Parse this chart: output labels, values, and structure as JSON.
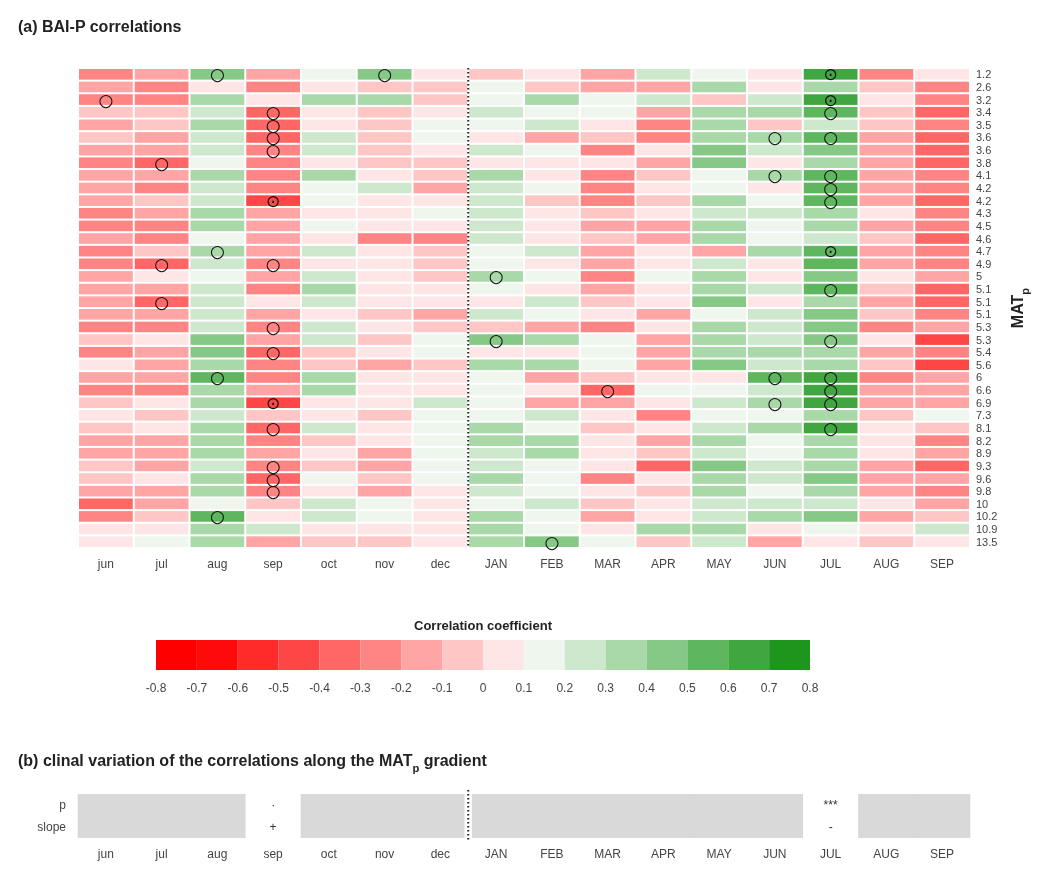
{
  "chart_data": [
    {
      "type": "heatmap",
      "title": "(a) BAI-P correlations",
      "ylabel": "MAT$_{p}$",
      "clabel": "Correlation coefficient",
      "categories": [
        "jun",
        "jul",
        "aug",
        "sep",
        "oct",
        "nov",
        "dec",
        "JAN",
        "FEB",
        "MAR",
        "APR",
        "MAY",
        "JUN",
        "JUL",
        "AUG",
        "SEP"
      ],
      "y_categories": [
        "1.2",
        "2.6",
        "3.2",
        "3.4",
        "3.5",
        "3.6",
        "3.6",
        "3.8",
        "4.1",
        "4.2",
        "4.2",
        "4.3",
        "4.5",
        "4.6",
        "4.7",
        "4.9",
        "5",
        "5.1",
        "5.1",
        "5.1",
        "5.3",
        "5.3",
        "5.4",
        "5.6",
        "6",
        "6.6",
        "6.9",
        "7.3",
        "8.1",
        "8.2",
        "8.9",
        "9.3",
        "9.6",
        "9.8",
        "10",
        "10.2",
        "10.9",
        "13.5"
      ],
      "clim": [
        -0.8,
        0.8
      ],
      "cticks": [
        -0.8,
        -0.7,
        -0.6,
        -0.5,
        -0.4,
        -0.3,
        -0.2,
        -0.1,
        0,
        0.1,
        0.2,
        0.3,
        0.4,
        0.5,
        0.6,
        0.7,
        0.8
      ],
      "cells": [
        [
          -0.25,
          -0.15,
          0.45,
          -0.15,
          0.15,
          0.45,
          0.05,
          -0.05,
          0.05,
          -0.15,
          0.25,
          0.15,
          0.05,
          0.65,
          -0.25,
          0.05
        ],
        [
          -0.15,
          -0.25,
          0.05,
          -0.25,
          0.05,
          -0.05,
          -0.05,
          0.15,
          -0.05,
          -0.15,
          -0.15,
          0.35,
          0.05,
          0.35,
          -0.05,
          -0.25
        ],
        [
          -0.25,
          -0.25,
          0.35,
          0.05,
          0.35,
          0.35,
          -0.05,
          0.15,
          0.35,
          0.15,
          0.25,
          -0.05,
          0.25,
          0.65,
          0.05,
          -0.25
        ],
        [
          -0.05,
          -0.05,
          0.25,
          -0.35,
          0.05,
          -0.05,
          0.05,
          0.25,
          0.15,
          0.15,
          -0.15,
          0.35,
          0.35,
          0.55,
          -0.05,
          -0.35
        ],
        [
          -0.15,
          -0.05,
          0.35,
          -0.35,
          0.05,
          -0.05,
          0.15,
          0.15,
          0.25,
          0.05,
          -0.25,
          0.35,
          -0.05,
          0.25,
          -0.05,
          -0.25
        ],
        [
          -0.05,
          -0.15,
          0.25,
          -0.35,
          0.25,
          -0.05,
          0.15,
          0.05,
          -0.15,
          -0.05,
          -0.25,
          0.35,
          0.35,
          0.55,
          -0.15,
          -0.35
        ],
        [
          -0.15,
          -0.15,
          0.25,
          -0.25,
          0.25,
          -0.05,
          0.05,
          0.25,
          0.15,
          -0.25,
          0.05,
          0.45,
          0.25,
          0.45,
          -0.15,
          -0.35
        ],
        [
          -0.25,
          -0.35,
          0.15,
          -0.25,
          0.05,
          -0.05,
          -0.05,
          0.05,
          0.05,
          0.05,
          -0.15,
          0.45,
          0.05,
          0.35,
          -0.15,
          -0.35
        ],
        [
          -0.15,
          -0.15,
          0.35,
          -0.25,
          0.35,
          0.05,
          -0.05,
          0.35,
          0.05,
          -0.25,
          -0.05,
          0.15,
          0.35,
          0.55,
          -0.15,
          -0.25
        ],
        [
          -0.15,
          -0.25,
          0.25,
          -0.25,
          0.15,
          0.25,
          -0.15,
          0.25,
          0.15,
          -0.25,
          0.05,
          0.15,
          0.05,
          0.55,
          -0.15,
          -0.25
        ],
        [
          -0.15,
          -0.05,
          0.25,
          -0.45,
          0.15,
          0.05,
          0.05,
          0.25,
          -0.05,
          -0.25,
          -0.05,
          0.35,
          0.15,
          0.55,
          -0.15,
          -0.35
        ],
        [
          -0.25,
          -0.15,
          0.35,
          -0.15,
          0.05,
          0.05,
          0.15,
          0.25,
          0.05,
          -0.05,
          0.05,
          0.25,
          0.25,
          0.35,
          0.05,
          -0.25
        ],
        [
          -0.25,
          -0.25,
          0.35,
          -0.15,
          0.15,
          0.05,
          0.05,
          0.25,
          0.05,
          -0.15,
          -0.15,
          0.35,
          0.15,
          0.35,
          -0.15,
          -0.25
        ],
        [
          -0.15,
          -0.25,
          0.15,
          -0.15,
          0.05,
          -0.25,
          -0.25,
          0.25,
          0.05,
          -0.05,
          -0.15,
          0.35,
          0.15,
          0.25,
          -0.05,
          -0.35
        ],
        [
          -0.25,
          -0.05,
          0.35,
          -0.15,
          0.25,
          0.05,
          -0.05,
          0.15,
          0.25,
          -0.15,
          0.05,
          -0.15,
          0.35,
          0.55,
          -0.15,
          -0.25
        ],
        [
          -0.25,
          -0.35,
          0.25,
          -0.25,
          0.05,
          0.05,
          -0.05,
          0.15,
          0.05,
          -0.15,
          0.05,
          0.25,
          0.05,
          0.55,
          -0.15,
          -0.25
        ],
        [
          -0.15,
          0.05,
          0.15,
          -0.15,
          0.25,
          0.05,
          -0.05,
          0.35,
          0.15,
          -0.25,
          0.15,
          0.35,
          0.05,
          0.45,
          0.05,
          -0.15
        ],
        [
          -0.15,
          -0.15,
          0.25,
          -0.25,
          0.35,
          0.05,
          0.05,
          0.15,
          0.05,
          -0.15,
          0.05,
          0.35,
          0.25,
          0.55,
          -0.05,
          -0.35
        ],
        [
          -0.15,
          -0.35,
          0.25,
          0.05,
          0.25,
          0.05,
          0.05,
          0.05,
          0.25,
          -0.05,
          0.05,
          0.45,
          0.05,
          0.35,
          -0.15,
          -0.35
        ],
        [
          -0.15,
          -0.15,
          0.25,
          -0.15,
          0.05,
          -0.05,
          -0.15,
          0.25,
          0.15,
          0.05,
          -0.15,
          0.15,
          0.25,
          0.45,
          -0.05,
          -0.25
        ],
        [
          -0.25,
          -0.25,
          0.25,
          -0.25,
          0.25,
          0.05,
          -0.05,
          -0.05,
          -0.15,
          -0.25,
          0.05,
          0.35,
          0.25,
          0.45,
          -0.25,
          -0.15
        ],
        [
          -0.05,
          0.05,
          0.45,
          -0.15,
          0.25,
          -0.05,
          0.15,
          0.45,
          0.35,
          0.15,
          -0.15,
          0.35,
          0.25,
          0.45,
          0.05,
          -0.45
        ],
        [
          -0.25,
          -0.15,
          0.45,
          -0.35,
          -0.05,
          0.05,
          0.15,
          0.05,
          0.05,
          0.15,
          -0.15,
          0.35,
          0.35,
          0.35,
          -0.15,
          -0.25
        ],
        [
          0.05,
          -0.15,
          0.35,
          -0.25,
          -0.05,
          -0.15,
          -0.05,
          0.35,
          0.35,
          0.15,
          -0.15,
          0.45,
          0.25,
          0.35,
          -0.05,
          -0.45
        ],
        [
          -0.15,
          -0.15,
          0.55,
          -0.25,
          0.35,
          0.05,
          0.05,
          0.15,
          -0.15,
          -0.05,
          0.05,
          0.05,
          0.55,
          0.65,
          -0.25,
          -0.15
        ],
        [
          -0.25,
          -0.25,
          0.35,
          -0.15,
          0.35,
          0.05,
          0.05,
          0.15,
          0.05,
          -0.35,
          0.15,
          0.15,
          0.25,
          0.65,
          -0.15,
          -0.15
        ],
        [
          -0.05,
          0.05,
          0.35,
          -0.45,
          0.05,
          0.05,
          0.25,
          0.15,
          -0.15,
          -0.15,
          0.05,
          0.25,
          0.35,
          0.65,
          -0.15,
          -0.15
        ],
        [
          0.05,
          -0.05,
          0.25,
          -0.05,
          0.05,
          -0.05,
          0.15,
          0.15,
          0.25,
          0.05,
          -0.25,
          0.15,
          0.15,
          0.35,
          -0.05,
          0.15
        ],
        [
          -0.05,
          0.05,
          0.35,
          -0.35,
          0.25,
          0.05,
          0.15,
          0.35,
          0.15,
          -0.05,
          0.05,
          0.25,
          0.35,
          0.65,
          0.05,
          -0.05
        ],
        [
          -0.15,
          -0.15,
          0.35,
          -0.25,
          -0.05,
          0.05,
          0.15,
          0.35,
          0.35,
          0.05,
          -0.15,
          0.35,
          0.15,
          0.35,
          0.05,
          -0.25
        ],
        [
          -0.15,
          -0.15,
          0.35,
          -0.15,
          0.05,
          -0.15,
          0.15,
          0.25,
          0.35,
          0.05,
          -0.05,
          0.25,
          0.15,
          0.35,
          0.05,
          -0.15
        ],
        [
          -0.05,
          -0.15,
          0.25,
          -0.25,
          -0.05,
          -0.15,
          0.15,
          0.25,
          0.15,
          0.05,
          -0.35,
          0.45,
          0.25,
          0.35,
          -0.15,
          -0.35
        ],
        [
          -0.05,
          0.05,
          0.35,
          -0.35,
          0.15,
          -0.05,
          0.15,
          0.35,
          0.15,
          -0.25,
          0.05,
          0.35,
          0.25,
          0.45,
          -0.15,
          -0.15
        ],
        [
          -0.15,
          -0.15,
          0.35,
          -0.25,
          0.05,
          -0.15,
          0.05,
          0.25,
          0.15,
          0.05,
          -0.05,
          0.35,
          0.15,
          0.35,
          -0.15,
          -0.25
        ],
        [
          -0.35,
          -0.15,
          0.15,
          -0.05,
          0.25,
          0.15,
          0.05,
          0.15,
          0.25,
          -0.05,
          0.05,
          0.25,
          0.25,
          0.25,
          0.05,
          -0.15
        ],
        [
          -0.25,
          -0.05,
          0.55,
          0.05,
          0.25,
          0.15,
          0.05,
          0.35,
          0.15,
          -0.15,
          0.05,
          0.25,
          0.35,
          0.45,
          -0.15,
          -0.05
        ],
        [
          0.05,
          0.05,
          0.35,
          0.25,
          0.05,
          0.05,
          0.05,
          0.35,
          0.15,
          0.05,
          0.35,
          0.35,
          0.05,
          0.15,
          0.05,
          0.25
        ],
        [
          0.05,
          0.15,
          0.35,
          -0.15,
          -0.05,
          -0.05,
          0.05,
          0.35,
          0.45,
          0.15,
          -0.05,
          0.25,
          -0.15,
          0.05,
          -0.05,
          0.05
        ]
      ],
      "cell_labels": [
        [
          null,
          null,
          "○",
          null,
          null,
          "○",
          null,
          null,
          null,
          null,
          null,
          null,
          null,
          "⊙",
          null,
          null
        ],
        [
          null,
          null,
          null,
          null,
          null,
          null,
          null,
          null,
          null,
          null,
          null,
          null,
          null,
          null,
          null,
          null
        ],
        [
          "○",
          null,
          null,
          null,
          null,
          null,
          null,
          null,
          null,
          null,
          null,
          null,
          null,
          "⊙",
          null,
          null
        ],
        [
          null,
          null,
          null,
          "○",
          null,
          null,
          null,
          null,
          null,
          null,
          null,
          null,
          null,
          "○",
          null,
          null
        ],
        [
          null,
          null,
          null,
          "○",
          null,
          null,
          null,
          null,
          null,
          null,
          null,
          null,
          null,
          null,
          null,
          null
        ],
        [
          null,
          null,
          null,
          "○",
          null,
          null,
          null,
          null,
          null,
          null,
          null,
          null,
          "○",
          "○",
          null,
          null
        ],
        [
          null,
          null,
          null,
          "○",
          null,
          null,
          null,
          null,
          null,
          null,
          null,
          null,
          null,
          null,
          null,
          null
        ],
        [
          null,
          "○",
          null,
          null,
          null,
          null,
          null,
          null,
          null,
          null,
          null,
          null,
          null,
          null,
          null,
          null
        ],
        [
          null,
          null,
          null,
          null,
          null,
          null,
          null,
          null,
          null,
          null,
          null,
          null,
          "○",
          "○",
          null,
          null
        ],
        [
          null,
          null,
          null,
          null,
          null,
          null,
          null,
          null,
          null,
          null,
          null,
          null,
          null,
          "○",
          null,
          null
        ],
        [
          null,
          null,
          null,
          "⊙",
          null,
          null,
          null,
          null,
          null,
          null,
          null,
          null,
          null,
          "○",
          null,
          null
        ],
        [
          null,
          null,
          null,
          null,
          null,
          null,
          null,
          null,
          null,
          null,
          null,
          null,
          null,
          null,
          null,
          null
        ],
        [
          null,
          null,
          null,
          null,
          null,
          null,
          null,
          null,
          null,
          null,
          null,
          null,
          null,
          null,
          null,
          null
        ],
        [
          null,
          null,
          null,
          null,
          null,
          null,
          null,
          null,
          null,
          null,
          null,
          null,
          null,
          null,
          null,
          null
        ],
        [
          null,
          null,
          "○",
          null,
          null,
          null,
          null,
          null,
          null,
          null,
          null,
          null,
          null,
          "⊙",
          null,
          null
        ],
        [
          null,
          "○",
          null,
          "○",
          null,
          null,
          null,
          null,
          null,
          null,
          null,
          null,
          null,
          null,
          null,
          null
        ],
        [
          null,
          null,
          null,
          null,
          null,
          null,
          null,
          "○",
          null,
          null,
          null,
          null,
          null,
          null,
          null,
          null
        ],
        [
          null,
          null,
          null,
          null,
          null,
          null,
          null,
          null,
          null,
          null,
          null,
          null,
          null,
          "○",
          null,
          null
        ],
        [
          null,
          "○",
          null,
          null,
          null,
          null,
          null,
          null,
          null,
          null,
          null,
          null,
          null,
          null,
          null,
          null
        ],
        [
          null,
          null,
          null,
          null,
          null,
          null,
          null,
          null,
          null,
          null,
          null,
          null,
          null,
          null,
          null,
          null
        ],
        [
          null,
          null,
          null,
          "○",
          null,
          null,
          null,
          null,
          null,
          null,
          null,
          null,
          null,
          null,
          null,
          null
        ],
        [
          null,
          null,
          null,
          null,
          null,
          null,
          null,
          "○",
          null,
          null,
          null,
          null,
          null,
          "○",
          null,
          null
        ],
        [
          null,
          null,
          null,
          "○",
          null,
          null,
          null,
          null,
          null,
          null,
          null,
          null,
          null,
          null,
          null,
          null
        ],
        [
          null,
          null,
          null,
          null,
          null,
          null,
          null,
          null,
          null,
          null,
          null,
          null,
          null,
          null,
          null,
          null
        ],
        [
          null,
          null,
          "○",
          null,
          null,
          null,
          null,
          null,
          null,
          null,
          null,
          null,
          "○",
          "○",
          null,
          null
        ],
        [
          null,
          null,
          null,
          null,
          null,
          null,
          null,
          null,
          null,
          "○",
          null,
          null,
          null,
          "○",
          null,
          null
        ],
        [
          null,
          null,
          null,
          "⊙",
          null,
          null,
          null,
          null,
          null,
          null,
          null,
          null,
          "○",
          "○",
          null,
          null
        ],
        [
          null,
          null,
          null,
          null,
          null,
          null,
          null,
          null,
          null,
          null,
          null,
          null,
          null,
          null,
          null,
          null
        ],
        [
          null,
          null,
          null,
          "○",
          null,
          null,
          null,
          null,
          null,
          null,
          null,
          null,
          null,
          "○",
          null,
          null
        ],
        [
          null,
          null,
          null,
          null,
          null,
          null,
          null,
          null,
          null,
          null,
          null,
          null,
          null,
          null,
          null,
          null
        ],
        [
          null,
          null,
          null,
          null,
          null,
          null,
          null,
          null,
          null,
          null,
          null,
          null,
          null,
          null,
          null,
          null
        ],
        [
          null,
          null,
          null,
          "○",
          null,
          null,
          null,
          null,
          null,
          null,
          null,
          null,
          null,
          null,
          null,
          null
        ],
        [
          null,
          null,
          null,
          "○",
          null,
          null,
          null,
          null,
          null,
          null,
          null,
          null,
          null,
          null,
          null,
          null
        ],
        [
          null,
          null,
          null,
          "○",
          null,
          null,
          null,
          null,
          null,
          null,
          null,
          null,
          null,
          null,
          null,
          null
        ],
        [
          null,
          null,
          null,
          null,
          null,
          null,
          null,
          null,
          null,
          null,
          null,
          null,
          null,
          null,
          null,
          null
        ],
        [
          null,
          null,
          "○",
          null,
          null,
          null,
          null,
          null,
          null,
          null,
          null,
          null,
          null,
          null,
          null,
          null
        ],
        [
          null,
          null,
          null,
          null,
          null,
          null,
          null,
          null,
          null,
          null,
          null,
          null,
          null,
          null,
          null,
          null
        ],
        [
          null,
          null,
          null,
          null,
          null,
          null,
          null,
          null,
          "○",
          null,
          null,
          null,
          null,
          null,
          null,
          null
        ]
      ]
    },
    {
      "type": "other",
      "title": "(b) clinal variation of the correlations along the MAT$_{p}$ gradient",
      "color": "#d9d9d9",
      "categories": [
        "jun",
        "jul",
        "aug",
        "sep",
        "oct",
        "nov",
        "dec",
        "JAN",
        "FEB",
        "MAR",
        "APR",
        "MAY",
        "JUN",
        "JUL",
        "AUG",
        "SEP"
      ],
      "y_categories": [
        "p",
        "slope"
      ],
      "cell_labels": [
        [
          null,
          null,
          null,
          "·",
          null,
          null,
          null,
          null,
          null,
          null,
          null,
          null,
          null,
          "***",
          null,
          null
        ],
        [
          null,
          null,
          null,
          "+",
          null,
          null,
          null,
          null,
          null,
          null,
          null,
          null,
          null,
          "-",
          null,
          null
        ]
      ]
    }
  ]
}
